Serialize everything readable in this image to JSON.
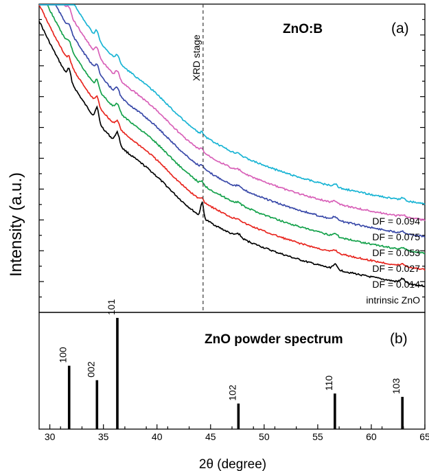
{
  "chart_data": [
    {
      "panel": "(a)",
      "type": "line",
      "title": "ZnO:B",
      "ylabel": "Intensity (a.u.)",
      "xlim": [
        29,
        65
      ],
      "reference_line": {
        "x": 44.3,
        "label": "XRD stage"
      },
      "series": [
        {
          "name": "intrinsic ZnO",
          "color": "#000000"
        },
        {
          "name": "DF = 0.014",
          "color": "#e8251e"
        },
        {
          "name": "DF = 0.027",
          "color": "#13a14a"
        },
        {
          "name": "DF = 0.053",
          "color": "#3848a8"
        },
        {
          "name": "DF = 0.075",
          "color": "#d860b8"
        },
        {
          "name": "DF = 0.094",
          "color": "#18b4d4"
        }
      ],
      "peaks_2theta": [
        31.8,
        34.4,
        36.3,
        44.2,
        47.6,
        56.6,
        62.9
      ]
    },
    {
      "panel": "(b)",
      "type": "bar",
      "title": "ZnO powder spectrum",
      "xlabel": "2θ (degree)",
      "xlim": [
        29,
        65
      ],
      "xticks": [
        30,
        35,
        40,
        45,
        50,
        55,
        60,
        65
      ],
      "bars": [
        {
          "label": "100",
          "x": 31.8,
          "value": 57
        },
        {
          "label": "002",
          "x": 34.4,
          "value": 44
        },
        {
          "label": "101",
          "x": 36.3,
          "value": 100
        },
        {
          "label": "102",
          "x": 47.6,
          "value": 23
        },
        {
          "label": "110",
          "x": 56.6,
          "value": 32
        },
        {
          "label": "103",
          "x": 62.9,
          "value": 29
        }
      ]
    }
  ]
}
